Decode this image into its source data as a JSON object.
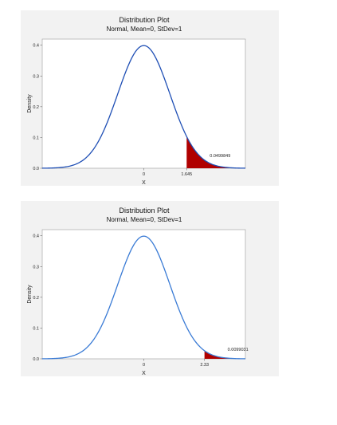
{
  "chart_data": [
    {
      "type": "area",
      "title": "Distribution Plot",
      "subtitle": "Normal, Mean=0, StDev=1",
      "distribution": {
        "name": "normal",
        "mean": 0,
        "stdev": 1
      },
      "xlabel": "X",
      "ylabel": "Density",
      "xlim": [
        -3.9,
        3.9
      ],
      "ylim": [
        0,
        0.42
      ],
      "yticks": [
        "0.0",
        "0.1",
        "0.2",
        "0.3",
        "0.4"
      ],
      "ytick_values": [
        0,
        0.1,
        0.2,
        0.3,
        0.4
      ],
      "xticks": [
        "0",
        "1.645"
      ],
      "xtick_values": [
        0,
        1.645
      ],
      "shaded_region": {
        "from": 1.645,
        "to": 3.9,
        "area_label": "0.0499849",
        "color": "#b00000"
      },
      "curve_color": "#1f4fb5",
      "grid": false
    },
    {
      "type": "area",
      "title": "Distribution Plot",
      "subtitle": "Normal, Mean=0, StDev=1",
      "distribution": {
        "name": "normal",
        "mean": 0,
        "stdev": 1
      },
      "xlabel": "X",
      "ylabel": "Density",
      "xlim": [
        -3.9,
        3.9
      ],
      "ylim": [
        0,
        0.42
      ],
      "yticks": [
        "0.0",
        "0.1",
        "0.2",
        "0.3",
        "0.4"
      ],
      "ytick_values": [
        0,
        0.1,
        0.2,
        0.3,
        0.4
      ],
      "xticks": [
        "0",
        "2.33"
      ],
      "xtick_values": [
        0,
        2.33
      ],
      "shaded_region": {
        "from": 2.33,
        "to": 3.9,
        "area_label": "0.0099031",
        "color": "#b00000"
      },
      "curve_color": "#3a7bd5",
      "grid": false
    }
  ]
}
